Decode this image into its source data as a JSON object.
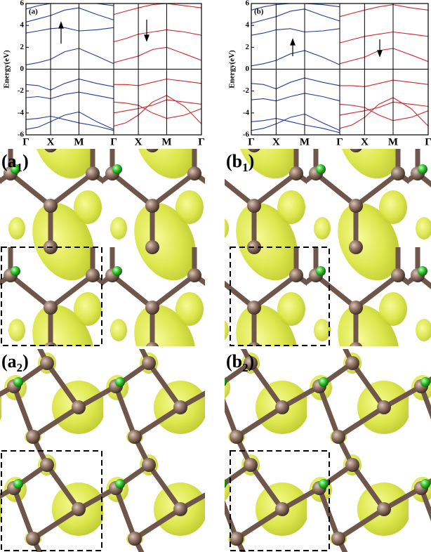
{
  "chart_data": [
    {
      "type": "band",
      "label": "(a)",
      "y_label": "Energy(eV)",
      "xlim": [
        0,
        6.2
      ],
      "xticks": [
        {
          "value": 0,
          "label": "Γ"
        },
        {
          "value": 0.87,
          "label": "X"
        },
        {
          "value": 1.87,
          "label": "M"
        },
        {
          "value": 3.1,
          "label": "Γ"
        },
        {
          "value": 3.97,
          "label": "X"
        },
        {
          "value": 4.97,
          "label": "M"
        },
        {
          "value": 6.2,
          "label": "Γ"
        }
      ],
      "ylim": [
        -6,
        6
      ],
      "yticks": [
        -6,
        -4,
        -2,
        0,
        2,
        4,
        6
      ],
      "fermi_level": 0,
      "series": [
        {
          "color": "#1f3f9a",
          "x": [
            0,
            0.43,
            0.87,
            1.37,
            1.87,
            2.5,
            3.1
          ],
          "values": [
            -5.5,
            -5.3,
            -4.8,
            -4.2,
            -3.9,
            -4.8,
            -5.5
          ]
        },
        {
          "color": "#1f3f9a",
          "x": [
            0,
            0.43,
            0.87,
            1.37,
            1.87,
            2.5,
            3.1
          ],
          "values": [
            -4.6,
            -4.5,
            -4.3,
            -4.6,
            -4.9,
            -5.2,
            -5.6
          ]
        },
        {
          "color": "#1f3f9a",
          "x": [
            0,
            0.43,
            0.87,
            1.37,
            1.87,
            2.5,
            3.1
          ],
          "values": [
            -2.6,
            -2.5,
            -2.7,
            -2.3,
            -2.1,
            -2.4,
            -2.7
          ]
        },
        {
          "color": "#1f3f9a",
          "x": [
            0,
            0.43,
            0.87,
            1.37,
            1.87,
            2.5,
            3.1
          ],
          "values": [
            -1.4,
            -1.5,
            -1.9,
            -1.3,
            -0.9,
            -1.3,
            -1.6
          ]
        },
        {
          "color": "#1f3f9a",
          "x": [
            0,
            0.43,
            0.87,
            1.37,
            1.87,
            2.5,
            3.1
          ],
          "values": [
            0.4,
            0.6,
            0.9,
            1.6,
            1.9,
            1.2,
            0.5
          ]
        },
        {
          "color": "#1f3f9a",
          "x": [
            0,
            0.43,
            0.87,
            1.37,
            1.87,
            2.5,
            3.1
          ],
          "values": [
            3.3,
            3.5,
            3.7,
            3.8,
            3.5,
            3.6,
            3.8
          ]
        },
        {
          "color": "#1f3f9a",
          "x": [
            0,
            0.43,
            0.87,
            1.37,
            1.87,
            2.5,
            3.1
          ],
          "values": [
            4.3,
            4.6,
            4.9,
            5.4,
            5.6,
            5.0,
            4.5
          ]
        },
        {
          "color": "#1f3f9a",
          "x": [
            0,
            0.43,
            0.87,
            1.37,
            1.87,
            2.5,
            3.1
          ],
          "values": [
            5.5,
            5.8,
            6.0,
            6.0,
            6.0,
            6.0,
            5.8
          ]
        },
        {
          "color": "#d0282c",
          "x": [
            3.1,
            3.53,
            3.97,
            4.47,
            4.97,
            5.6,
            6.2
          ],
          "values": [
            -5.2,
            -4.9,
            -4.2,
            -3.0,
            -2.4,
            -3.4,
            -5.0
          ]
        },
        {
          "color": "#d0282c",
          "x": [
            3.1,
            3.53,
            3.97,
            4.47,
            4.97,
            5.6,
            6.2
          ],
          "values": [
            -4.0,
            -3.8,
            -3.6,
            -3.3,
            -2.8,
            -3.0,
            -3.2
          ]
        },
        {
          "color": "#d0282c",
          "x": [
            3.1,
            3.53,
            3.97,
            4.47,
            4.97,
            5.6,
            6.2
          ],
          "values": [
            -3.0,
            -3.1,
            -3.3,
            -4.0,
            -4.5,
            -4.2,
            -3.6
          ]
        },
        {
          "color": "#d0282c",
          "x": [
            3.1,
            3.53,
            3.97,
            4.47,
            4.97,
            5.6,
            6.2
          ],
          "values": [
            -1.4,
            -1.4,
            -1.5,
            -1.2,
            -0.9,
            -1.1,
            -1.3
          ]
        },
        {
          "color": "#d0282c",
          "x": [
            3.1,
            3.53,
            3.97,
            4.47,
            4.97,
            5.6,
            6.2
          ],
          "values": [
            0.6,
            0.9,
            1.2,
            1.8,
            2.0,
            1.4,
            0.8
          ]
        },
        {
          "color": "#d0282c",
          "x": [
            3.1,
            3.53,
            3.97,
            4.47,
            4.97,
            5.6,
            6.2
          ],
          "values": [
            2.5,
            2.8,
            3.2,
            3.4,
            3.6,
            3.4,
            3.1
          ]
        },
        {
          "color": "#d0282c",
          "x": [
            3.1,
            3.53,
            3.97,
            4.47,
            4.97,
            5.6,
            6.2
          ],
          "values": [
            5.0,
            5.3,
            5.6,
            5.9,
            6.0,
            5.8,
            5.6
          ]
        }
      ]
    },
    {
      "type": "band",
      "label": "(b)",
      "y_label": "Energy(eV)",
      "xlim": [
        0,
        6.2
      ],
      "xticks": [
        {
          "value": 0,
          "label": "Γ"
        },
        {
          "value": 0.87,
          "label": "X"
        },
        {
          "value": 1.87,
          "label": "M"
        },
        {
          "value": 3.1,
          "label": "Γ"
        },
        {
          "value": 3.97,
          "label": "X"
        },
        {
          "value": 4.97,
          "label": "M"
        },
        {
          "value": 6.2,
          "label": "Γ"
        }
      ],
      "ylim": [
        -6,
        6
      ],
      "yticks": [
        -6,
        -4,
        -2,
        0,
        2,
        4,
        6
      ],
      "fermi_level": 0,
      "series": [
        {
          "color": "#1f3f9a",
          "x": [
            0,
            0.43,
            0.87,
            1.37,
            1.87,
            2.5,
            3.1
          ],
          "values": [
            -5.6,
            -5.4,
            -5.0,
            -4.4,
            -4.1,
            -4.9,
            -5.6
          ]
        },
        {
          "color": "#1f3f9a",
          "x": [
            0,
            0.43,
            0.87,
            1.37,
            1.87,
            2.5,
            3.1
          ],
          "values": [
            -4.8,
            -4.7,
            -4.5,
            -4.8,
            -5.1,
            -5.4,
            -5.8
          ]
        },
        {
          "color": "#1f3f9a",
          "x": [
            0,
            0.43,
            0.87,
            1.37,
            1.87,
            2.5,
            3.1
          ],
          "values": [
            -2.8,
            -2.7,
            -2.9,
            -2.5,
            -2.2,
            -2.5,
            -2.9
          ]
        },
        {
          "color": "#1f3f9a",
          "x": [
            0,
            0.43,
            0.87,
            1.37,
            1.87,
            2.5,
            3.1
          ],
          "values": [
            -1.3,
            -1.4,
            -1.8,
            -1.2,
            -0.8,
            -1.2,
            -1.5
          ]
        },
        {
          "color": "#1f3f9a",
          "x": [
            0,
            0.43,
            0.87,
            1.37,
            1.87,
            2.5,
            3.1
          ],
          "values": [
            0.3,
            0.5,
            0.8,
            1.4,
            1.7,
            1.1,
            0.4
          ]
        },
        {
          "color": "#1f3f9a",
          "x": [
            0,
            0.43,
            0.87,
            1.37,
            1.87,
            2.5,
            3.1
          ],
          "values": [
            3.1,
            3.3,
            3.6,
            3.7,
            3.4,
            3.5,
            3.7
          ]
        },
        {
          "color": "#1f3f9a",
          "x": [
            0,
            0.43,
            0.87,
            1.37,
            1.87,
            2.5,
            3.1
          ],
          "values": [
            4.2,
            4.5,
            4.8,
            5.3,
            5.5,
            4.9,
            4.4
          ]
        },
        {
          "color": "#1f3f9a",
          "x": [
            0,
            0.43,
            0.87,
            1.37,
            1.87,
            2.5,
            3.1
          ],
          "values": [
            5.4,
            5.7,
            5.9,
            6.0,
            6.0,
            5.9,
            5.7
          ]
        },
        {
          "color": "#d0282c",
          "x": [
            3.1,
            3.53,
            3.97,
            4.47,
            4.97,
            5.6,
            6.2
          ],
          "values": [
            -5.4,
            -5.1,
            -4.4,
            -3.2,
            -2.6,
            -3.6,
            -5.2
          ]
        },
        {
          "color": "#d0282c",
          "x": [
            3.1,
            3.53,
            3.97,
            4.47,
            4.97,
            5.6,
            6.2
          ],
          "values": [
            -4.2,
            -4.0,
            -3.8,
            -3.5,
            -3.0,
            -3.2,
            -3.4
          ]
        },
        {
          "color": "#d0282c",
          "x": [
            3.1,
            3.53,
            3.97,
            4.47,
            4.97,
            5.6,
            6.2
          ],
          "values": [
            -3.2,
            -3.3,
            -3.5,
            -4.2,
            -4.7,
            -4.4,
            -3.8
          ]
        },
        {
          "color": "#d0282c",
          "x": [
            3.1,
            3.53,
            3.97,
            4.47,
            4.97,
            5.6,
            6.2
          ],
          "values": [
            -1.5,
            -1.5,
            -1.6,
            -1.3,
            -1.0,
            -1.2,
            -1.4
          ]
        },
        {
          "color": "#d0282c",
          "x": [
            3.1,
            3.53,
            3.97,
            4.47,
            4.97,
            5.6,
            6.2
          ],
          "values": [
            0.5,
            0.8,
            1.1,
            1.7,
            1.9,
            1.3,
            0.7
          ]
        },
        {
          "color": "#d0282c",
          "x": [
            3.1,
            3.53,
            3.97,
            4.47,
            4.97,
            5.6,
            6.2
          ],
          "values": [
            2.4,
            2.7,
            3.0,
            3.2,
            3.4,
            3.2,
            3.0
          ]
        },
        {
          "color": "#d0282c",
          "x": [
            3.1,
            3.53,
            3.97,
            4.47,
            4.97,
            5.6,
            6.2
          ],
          "values": [
            4.8,
            5.1,
            5.4,
            5.7,
            5.9,
            5.6,
            5.4
          ]
        }
      ]
    }
  ],
  "images": [
    {
      "prefix": "(a",
      "sub": "1",
      "suffix": ")"
    },
    {
      "prefix": "(b",
      "sub": "1",
      "suffix": ")"
    },
    {
      "prefix": "(a",
      "sub": "2",
      "suffix": ")"
    },
    {
      "prefix": "(b",
      "sub": "2",
      "suffix": ")"
    }
  ]
}
